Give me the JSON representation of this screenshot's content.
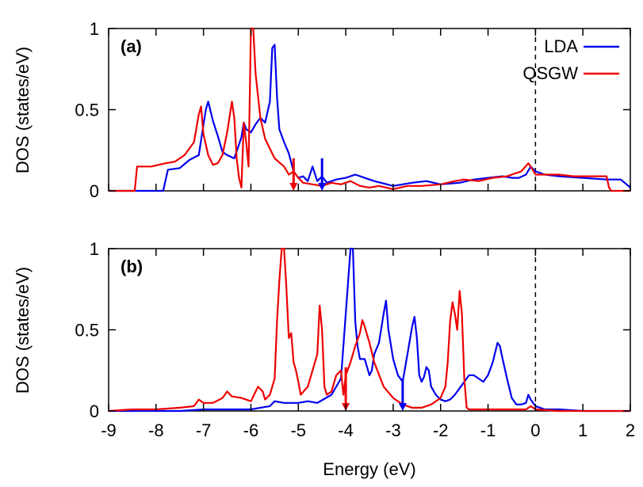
{
  "chart_data": [
    {
      "type": "line",
      "panel_label": "(a)",
      "ylabel": "DOS (states/eV)",
      "xlabel": "",
      "xlim": [
        -9,
        2
      ],
      "ylim": [
        0,
        1
      ],
      "y_ticks": [
        "0",
        "0.5",
        "1"
      ],
      "legend": {
        "placement": "top-right",
        "entries": [
          "LDA",
          "QSGW"
        ]
      },
      "fermi_level": 0,
      "markers": [
        {
          "series": "QSGW",
          "x": -5.1,
          "y_top": 0.2
        },
        {
          "series": "LDA",
          "x": -4.5,
          "y_top": 0.2
        }
      ],
      "series": [
        {
          "name": "LDA",
          "color": "#0000ee",
          "x": [
            -9,
            -7.85,
            -7.75,
            -7.5,
            -7.3,
            -7.1,
            -6.95,
            -6.9,
            -6.8,
            -6.7,
            -6.6,
            -6.5,
            -6.35,
            -6.2,
            -6.15,
            -6.1,
            -6.0,
            -5.9,
            -5.8,
            -5.7,
            -5.6,
            -5.55,
            -5.5,
            -5.45,
            -5.4,
            -5.3,
            -5.2,
            -5.1,
            -5.0,
            -4.9,
            -4.8,
            -4.7,
            -4.6,
            -4.5,
            -4.4,
            -4.2,
            -4.0,
            -3.8,
            -3.6,
            -3.4,
            -3.0,
            -2.6,
            -2.3,
            -2.0,
            -1.6,
            -1.3,
            -1.0,
            -0.7,
            -0.5,
            -0.35,
            -0.2,
            -0.1,
            0.0,
            0.2,
            0.5,
            1.0,
            1.5,
            1.8,
            2.0
          ],
          "y": [
            0,
            0,
            0.13,
            0.14,
            0.19,
            0.22,
            0.5,
            0.55,
            0.43,
            0.34,
            0.24,
            0.22,
            0.2,
            0.33,
            0.42,
            0.38,
            0.36,
            0.41,
            0.45,
            0.42,
            0.55,
            0.88,
            0.9,
            0.58,
            0.38,
            0.3,
            0.23,
            0.12,
            0.08,
            0.09,
            0.06,
            0.15,
            0.06,
            0.09,
            0.05,
            0.07,
            0.08,
            0.1,
            0.08,
            0.06,
            0.03,
            0.05,
            0.06,
            0.04,
            0.05,
            0.07,
            0.08,
            0.09,
            0.08,
            0.08,
            0.1,
            0.15,
            0.12,
            0.1,
            0.09,
            0.08,
            0.07,
            0.07,
            0.02
          ]
        },
        {
          "name": "QSGW",
          "color": "#ee0000",
          "x": [
            -9,
            -8.45,
            -8.4,
            -8.1,
            -7.8,
            -7.6,
            -7.4,
            -7.2,
            -7.1,
            -7.05,
            -7.0,
            -6.9,
            -6.8,
            -6.7,
            -6.6,
            -6.5,
            -6.4,
            -6.35,
            -6.3,
            -6.25,
            -6.2,
            -6.15,
            -6.1,
            -6.05,
            -6.0,
            -5.95,
            -5.9,
            -5.8,
            -5.7,
            -5.5,
            -5.3,
            -5.2,
            -5.1,
            -5.0,
            -4.9,
            -4.7,
            -4.5,
            -4.3,
            -4.1,
            -3.9,
            -3.7,
            -3.5,
            -3.3,
            -3.0,
            -2.7,
            -2.4,
            -2.0,
            -1.7,
            -1.5,
            -1.2,
            -0.9,
            -0.6,
            -0.3,
            -0.15,
            -0.1,
            0.0,
            0.2,
            0.5,
            0.8,
            1.2,
            1.5,
            1.55,
            1.6,
            2.0
          ],
          "y": [
            0,
            0,
            0.15,
            0.15,
            0.17,
            0.18,
            0.22,
            0.3,
            0.47,
            0.52,
            0.35,
            0.22,
            0.16,
            0.17,
            0.22,
            0.36,
            0.55,
            0.45,
            0.2,
            0.08,
            0.02,
            0.42,
            0.3,
            0.15,
            1.0,
            1.0,
            0.72,
            0.45,
            0.32,
            0.2,
            0.15,
            0.1,
            0.12,
            0.08,
            0.05,
            0.04,
            0.03,
            0.05,
            0.04,
            0.06,
            0.03,
            0.02,
            0.03,
            0.01,
            0.03,
            0.03,
            0.04,
            0.06,
            0.07,
            0.06,
            0.08,
            0.09,
            0.12,
            0.17,
            0.15,
            0.1,
            0.1,
            0.1,
            0.09,
            0.09,
            0.09,
            0.02,
            0.0,
            0.0
          ]
        }
      ]
    },
    {
      "type": "line",
      "panel_label": "(b)",
      "ylabel": "DOS (states/eV)",
      "xlabel": "Energy (eV)",
      "xlim": [
        -9,
        2
      ],
      "ylim": [
        0,
        1
      ],
      "y_ticks": [
        "0",
        "0.5",
        "1"
      ],
      "x_ticks": [
        "-9",
        "-8",
        "-7",
        "-6",
        "-5",
        "-4",
        "-3",
        "-2",
        "-1",
        "0",
        "1",
        "2"
      ],
      "fermi_level": 0,
      "markers": [
        {
          "series": "QSGW",
          "x": -4.0,
          "y_top": 0.27
        },
        {
          "series": "LDA",
          "x": -2.8,
          "y_top": 0.2
        }
      ],
      "series": [
        {
          "name": "LDA",
          "color": "#0000ee",
          "x": [
            -9,
            -7.5,
            -7.0,
            -6.5,
            -6.0,
            -5.8,
            -5.6,
            -5.5,
            -5.3,
            -5.0,
            -4.8,
            -4.6,
            -4.3,
            -4.1,
            -3.95,
            -3.9,
            -3.85,
            -3.8,
            -3.75,
            -3.7,
            -3.6,
            -3.5,
            -3.45,
            -3.4,
            -3.3,
            -3.2,
            -3.15,
            -3.1,
            -3.0,
            -2.9,
            -2.8,
            -2.7,
            -2.6,
            -2.55,
            -2.5,
            -2.45,
            -2.4,
            -2.35,
            -2.3,
            -2.25,
            -2.2,
            -2.1,
            -2.0,
            -1.9,
            -1.8,
            -1.7,
            -1.6,
            -1.5,
            -1.4,
            -1.3,
            -1.2,
            -1.1,
            -1.0,
            -0.9,
            -0.8,
            -0.75,
            -0.7,
            -0.6,
            -0.5,
            -0.4,
            -0.3,
            -0.2,
            -0.15,
            -0.1,
            0.0,
            0.2,
            0.5,
            1.0,
            1.5,
            2.0
          ],
          "y": [
            0,
            0.0,
            0.01,
            0.01,
            0.01,
            0.02,
            0.03,
            0.06,
            0.05,
            0.05,
            0.06,
            0.05,
            0.1,
            0.2,
            0.8,
            1.0,
            1.0,
            0.55,
            0.4,
            0.32,
            0.32,
            0.22,
            0.25,
            0.35,
            0.42,
            0.6,
            0.68,
            0.5,
            0.32,
            0.22,
            0.18,
            0.35,
            0.52,
            0.58,
            0.45,
            0.22,
            0.18,
            0.21,
            0.27,
            0.25,
            0.15,
            0.1,
            0.07,
            0.06,
            0.07,
            0.1,
            0.14,
            0.18,
            0.22,
            0.22,
            0.2,
            0.18,
            0.22,
            0.3,
            0.42,
            0.4,
            0.33,
            0.2,
            0.08,
            0.04,
            0.04,
            0.05,
            0.1,
            0.07,
            0.03,
            0.01,
            0.01,
            0.0,
            0.0,
            0.0
          ]
        },
        {
          "name": "QSGW",
          "color": "#ee0000",
          "x": [
            -9,
            -8.5,
            -8.0,
            -7.5,
            -7.2,
            -7.1,
            -7.0,
            -6.8,
            -6.6,
            -6.5,
            -6.4,
            -6.2,
            -6.0,
            -5.85,
            -5.75,
            -5.7,
            -5.6,
            -5.5,
            -5.45,
            -5.4,
            -5.35,
            -5.3,
            -5.25,
            -5.2,
            -5.15,
            -5.1,
            -5.05,
            -5.0,
            -4.95,
            -4.8,
            -4.7,
            -4.6,
            -4.55,
            -4.5,
            -4.45,
            -4.4,
            -4.3,
            -4.2,
            -4.1,
            -4.05,
            -4.0,
            -3.9,
            -3.8,
            -3.7,
            -3.65,
            -3.6,
            -3.5,
            -3.4,
            -3.2,
            -3.0,
            -2.8,
            -2.6,
            -2.4,
            -2.2,
            -2.0,
            -1.9,
            -1.85,
            -1.8,
            -1.75,
            -1.7,
            -1.65,
            -1.6,
            -1.55,
            -1.5,
            -1.45,
            -1.4,
            -1.3,
            -1.0,
            -0.5,
            -0.2,
            -0.1,
            0.0,
            0.5,
            1.0,
            2.0
          ],
          "y": [
            0,
            0.01,
            0.01,
            0.02,
            0.03,
            0.07,
            0.05,
            0.05,
            0.08,
            0.12,
            0.09,
            0.08,
            0.06,
            0.15,
            0.12,
            0.07,
            0.1,
            0.2,
            0.55,
            0.8,
            1.0,
            1.0,
            0.75,
            0.45,
            0.48,
            0.3,
            0.25,
            0.18,
            0.1,
            0.15,
            0.25,
            0.35,
            0.65,
            0.5,
            0.15,
            0.1,
            0.12,
            0.22,
            0.25,
            0.1,
            0.22,
            0.3,
            0.4,
            0.48,
            0.56,
            0.52,
            0.42,
            0.3,
            0.15,
            0.08,
            0.04,
            0.02,
            0.02,
            0.04,
            0.08,
            0.15,
            0.3,
            0.55,
            0.67,
            0.6,
            0.5,
            0.74,
            0.6,
            0.2,
            0.02,
            0.01,
            0.01,
            0.01,
            0.01,
            0.01,
            0.03,
            0.01,
            0.0,
            0.0,
            0.0
          ]
        }
      ]
    }
  ]
}
